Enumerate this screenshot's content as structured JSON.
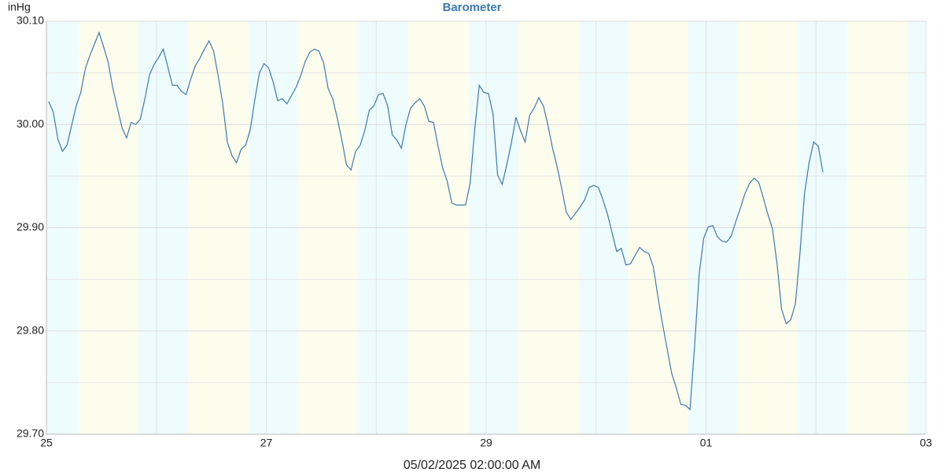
{
  "chart_data": {
    "type": "line",
    "title": "Barometer",
    "y_unit": "inHg",
    "x_label": "05/02/2025 02:00:00 AM",
    "x": [
      0.5,
      1.5,
      2.5,
      3.5,
      4.5,
      5.5,
      6.5,
      7.5,
      8.5,
      9.5,
      10.5,
      11.5,
      12.5,
      13.5,
      14.5,
      15.5,
      16.5,
      17.5,
      18.5,
      19.5,
      20.5,
      21.5,
      22.5,
      23.5,
      24.5,
      25.5,
      26.5,
      27.5,
      28.5,
      29.5,
      30.5,
      31.5,
      32.5,
      33.5,
      34.5,
      35.5,
      36.5,
      37.5,
      38.5,
      39.5,
      40.5,
      41.5,
      42.5,
      43.5,
      44.5,
      45.5,
      46.5,
      47.5,
      48.5,
      49.5,
      50.5,
      51.5,
      52.5,
      53.5,
      54.5,
      55.5,
      56.5,
      57.5,
      58.5,
      59.5,
      60.5,
      61.5,
      62.5,
      63.5,
      64.5,
      65.5,
      66.5,
      67.5,
      68.5,
      69.5,
      70.5,
      71.5,
      72.5,
      73.5,
      74.5,
      75.5,
      76.5,
      77.5,
      78.5,
      79.5,
      80.5,
      81.5,
      82.5,
      83.5,
      84.5,
      85.5,
      86.5,
      87.5,
      88.5,
      89.5,
      90.5,
      91.5,
      92.5,
      93.5,
      94.5,
      95.5,
      96.5,
      97.5,
      98.5,
      99.5,
      100.5,
      101.5,
      102.5,
      103.5,
      104.5,
      105.5,
      106.5,
      107.5,
      108.5,
      109.5,
      110.5,
      111.5,
      112.5,
      113.5,
      114.5,
      115.5,
      116.5,
      117.5,
      118.5,
      119.5,
      120.5,
      121.5,
      122.5,
      123.5,
      124.5,
      125.5,
      126.5,
      127.5,
      128.5,
      129.5,
      130.5,
      131.5,
      132.5,
      133.5,
      134.5,
      135.5,
      136.5,
      137.5,
      138.5,
      139.5,
      140.5,
      141.5,
      142.5,
      143.5,
      144.5,
      145.5,
      146.5,
      147.5,
      148.5,
      149.5,
      150.5,
      151.5,
      152.5,
      153.5,
      154.5,
      155.5,
      156.5,
      157.5,
      158.5,
      159.5,
      160.5,
      161.5,
      162.5,
      163.5,
      164.5,
      165.5,
      166.5,
      167.5,
      168.5,
      169.5
    ],
    "series": [
      {
        "name": "Barometer",
        "color": "#3f78b0",
        "values": [
          30.022,
          30.012,
          29.986,
          29.974,
          29.98,
          29.999,
          30.018,
          30.031,
          30.054,
          30.067,
          30.078,
          30.089,
          30.075,
          30.06,
          30.035,
          30.016,
          29.997,
          29.987,
          30.002,
          30.0,
          30.005,
          30.025,
          30.048,
          30.058,
          30.065,
          30.073,
          30.056,
          30.038,
          30.038,
          30.032,
          30.029,
          30.044,
          30.057,
          30.064,
          30.073,
          30.081,
          30.071,
          30.047,
          30.02,
          29.983,
          29.97,
          29.963,
          29.976,
          29.98,
          29.995,
          30.024,
          30.05,
          30.059,
          30.055,
          30.041,
          30.023,
          30.025,
          30.02,
          30.028,
          30.036,
          30.047,
          30.061,
          30.07,
          30.073,
          30.071,
          30.06,
          30.035,
          30.025,
          30.006,
          29.985,
          29.961,
          29.956,
          29.974,
          29.98,
          29.994,
          30.014,
          30.018,
          30.029,
          30.03,
          30.018,
          29.99,
          29.985,
          29.977,
          30.0,
          30.016,
          30.021,
          30.025,
          30.018,
          30.003,
          30.002,
          29.979,
          29.958,
          29.945,
          29.924,
          29.922,
          29.922,
          29.922,
          29.943,
          29.995,
          30.038,
          30.031,
          30.03,
          30.01,
          29.951,
          29.942,
          29.961,
          29.982,
          30.007,
          29.994,
          29.983,
          30.009,
          30.016,
          30.026,
          30.018,
          29.999,
          29.977,
          29.959,
          29.938,
          29.915,
          29.908,
          29.914,
          29.92,
          29.927,
          29.939,
          29.941,
          29.939,
          29.927,
          29.913,
          29.895,
          29.877,
          29.88,
          29.864,
          29.865,
          29.873,
          29.881,
          29.877,
          29.875,
          29.862,
          29.833,
          29.807,
          29.783,
          29.759,
          29.745,
          29.729,
          29.728,
          29.724,
          29.785,
          29.855,
          29.89,
          29.901,
          29.902,
          29.891,
          29.887,
          29.886,
          29.892,
          29.906,
          29.919,
          29.933,
          29.943,
          29.948,
          29.944,
          29.929,
          29.913,
          29.899,
          29.865,
          29.821,
          29.807,
          29.811,
          29.826,
          29.875,
          29.933,
          29.963,
          29.983,
          29.979,
          29.954
        ]
      }
    ],
    "xlim": [
      0,
      192
    ],
    "xticks": [
      {
        "value": 0,
        "label": "25"
      },
      {
        "value": 48,
        "label": "27"
      },
      {
        "value": 96,
        "label": "29"
      },
      {
        "value": 144,
        "label": "01"
      },
      {
        "value": 192,
        "label": "03"
      }
    ],
    "xminor_ticks": [
      24,
      72,
      120,
      168
    ],
    "ylim": [
      29.7,
      30.1
    ],
    "yticks": [
      {
        "value": 29.7,
        "label": "29.70"
      },
      {
        "value": 29.8,
        "label": "29.80"
      },
      {
        "value": 29.9,
        "label": "29.90"
      },
      {
        "value": 30,
        "label": "30.00"
      },
      {
        "value": 30.1,
        "label": "30.10"
      }
    ],
    "yminor_ticks": [
      29.75,
      29.85,
      29.95,
      30.05
    ],
    "grid": true
  }
}
